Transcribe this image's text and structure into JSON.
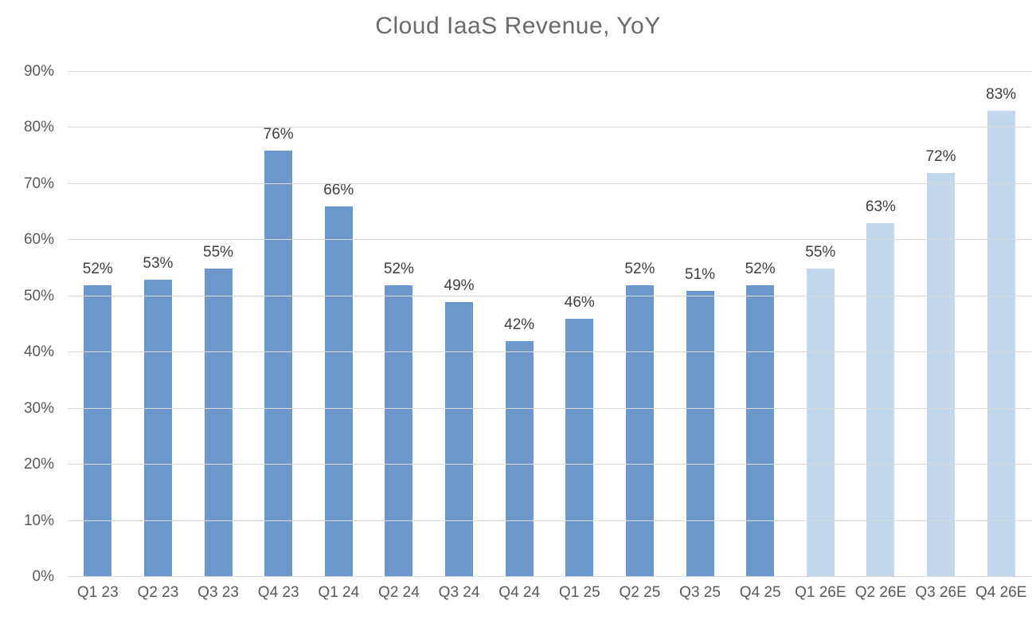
{
  "chart_data": {
    "type": "bar",
    "title": "Cloud IaaS Revenue, YoY",
    "categories": [
      "Q1 23",
      "Q2 23",
      "Q3 23",
      "Q4 23",
      "Q1 24",
      "Q2 24",
      "Q3 24",
      "Q4 24",
      "Q1 25",
      "Q2 25",
      "Q3 25",
      "Q4 25",
      "Q1 26E",
      "Q2 26E",
      "Q3 26E",
      "Q4 26E"
    ],
    "values": [
      52,
      53,
      55,
      76,
      66,
      52,
      49,
      42,
      46,
      52,
      51,
      52,
      55,
      63,
      72,
      83
    ],
    "data_labels": [
      "52%",
      "53%",
      "55%",
      "76%",
      "66%",
      "52%",
      "49%",
      "42%",
      "46%",
      "52%",
      "51%",
      "52%",
      "55%",
      "63%",
      "72%",
      "83%"
    ],
    "xlabel": "",
    "ylabel": "",
    "ylim": [
      0,
      90
    ],
    "y_tick_step": 10,
    "y_tick_labels": [
      "0%",
      "10%",
      "20%",
      "30%",
      "40%",
      "50%",
      "60%",
      "70%",
      "80%",
      "90%"
    ],
    "grid": true,
    "legend_position": "none",
    "colors": {
      "actual_bar": "#6C98CE",
      "estimate_bar": "#C3D7EC",
      "gridline": "#D9D9D9",
      "title_text": "#6A6A6A",
      "axis_text": "#595959",
      "data_label_text": "#3F3F3F"
    },
    "estimate_start_index": 12
  }
}
